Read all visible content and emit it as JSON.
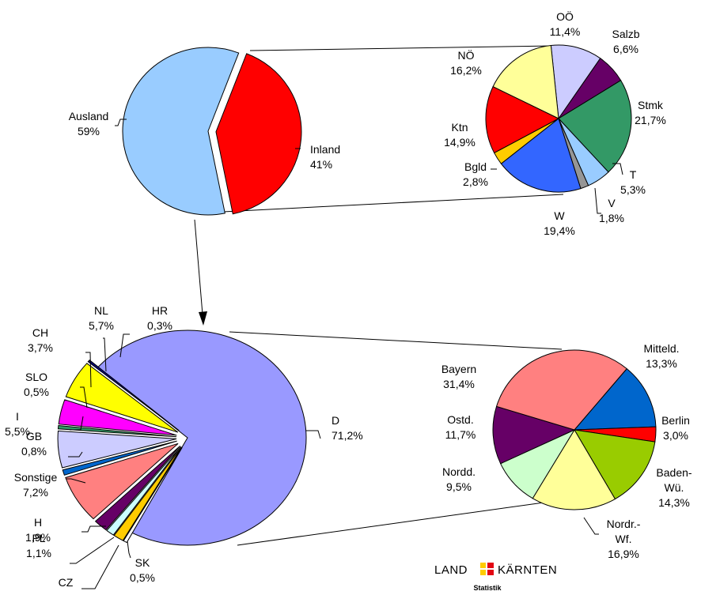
{
  "chart_data": [
    {
      "type": "pie",
      "slices": [
        {
          "label": "Ausland",
          "value_text": "59%",
          "value": 59,
          "color": "#99ccff"
        },
        {
          "label": "Inland",
          "value_text": "41%",
          "value": 41,
          "color": "#ff0000"
        }
      ]
    },
    {
      "type": "pie",
      "slices": [
        {
          "label": "OÖ",
          "value_text": "11,4%",
          "value": 11.4,
          "color": "#ccccff"
        },
        {
          "label": "Salzb",
          "value_text": "6,6%",
          "value": 6.6,
          "color": "#660066"
        },
        {
          "label": "Stmk",
          "value_text": "21,7%",
          "value": 21.7,
          "color": "#339966"
        },
        {
          "label": "T",
          "value_text": "5,3%",
          "value": 5.3,
          "color": "#99ccff"
        },
        {
          "label": "V",
          "value_text": "1,8%",
          "value": 1.8,
          "color": "#969696"
        },
        {
          "label": "W",
          "value_text": "19,4%",
          "value": 19.4,
          "color": "#3366ff"
        },
        {
          "label": "Bgld",
          "value_text": "2,8%",
          "value": 2.8,
          "color": "#ffcc00"
        },
        {
          "label": "Ktn",
          "value_text": "14,9%",
          "value": 14.9,
          "color": "#ff0000"
        },
        {
          "label": "NÖ",
          "value_text": "16,2%",
          "value": 16.2,
          "color": "#ffff99"
        }
      ]
    },
    {
      "type": "pie",
      "slices": [
        {
          "label": "D",
          "value_text": "71,2%",
          "value": 71.2,
          "color": "#9999ff"
        },
        {
          "label": "SK",
          "value_text": "0,5%",
          "value": 0.5,
          "color": "#ffffff"
        },
        {
          "label": "CZ",
          "value_text": "",
          "value": 1.4,
          "color": "#ffcc00"
        },
        {
          "label": "PL",
          "value_text": "1,1%",
          "value": 1.1,
          "color": "#ccffff"
        },
        {
          "label": "H",
          "value_text": "1,9%",
          "value": 1.9,
          "color": "#660066"
        },
        {
          "label": "Sonstige",
          "value_text": "7,2%",
          "value": 7.2,
          "color": "#ff8080"
        },
        {
          "label": "GB",
          "value_text": "0,8%",
          "value": 0.8,
          "color": "#0066cc"
        },
        {
          "label": "I",
          "value_text": "5,5%",
          "value": 5.5,
          "color": "#ccccff"
        },
        {
          "label": "SLO",
          "value_text": "0,5%",
          "value": 0.5,
          "color": "#339966"
        },
        {
          "label": "CH",
          "value_text": "3,7%",
          "value": 3.7,
          "color": "#ff00ff"
        },
        {
          "label": "NL",
          "value_text": "5,7%",
          "value": 5.7,
          "color": "#ffff00"
        },
        {
          "label": "HR",
          "value_text": "0,3%",
          "value": 0.3,
          "color": "#000080"
        }
      ]
    },
    {
      "type": "pie",
      "slices": [
        {
          "label": "Mitteld.",
          "value_text": "13,3%",
          "value": 13.3,
          "color": "#0066cc"
        },
        {
          "label": "Berlin",
          "value_text": "3,0%",
          "value": 3.0,
          "color": "#ff0000"
        },
        {
          "label": "Baden-Wü.",
          "value_text": "14,3%",
          "value": 14.3,
          "color": "#99cc00"
        },
        {
          "label": "Nordr.-Wf.",
          "value_text": "16,9%",
          "value": 16.9,
          "color": "#ffff99"
        },
        {
          "label": "Nordd.",
          "value_text": "9,5%",
          "value": 9.5,
          "color": "#ccffcc"
        },
        {
          "label": "Ostd.",
          "value_text": "11,7%",
          "value": 11.7,
          "color": "#660066"
        },
        {
          "label": "Bayern",
          "value_text": "31,4%",
          "value": 31.4,
          "color": "#ff8080"
        }
      ]
    }
  ],
  "logo": {
    "left": "LAND",
    "right": "KÄRNTEN",
    "sub": "Statistik",
    "colors": [
      "#ffcc00",
      "#e30613"
    ]
  }
}
